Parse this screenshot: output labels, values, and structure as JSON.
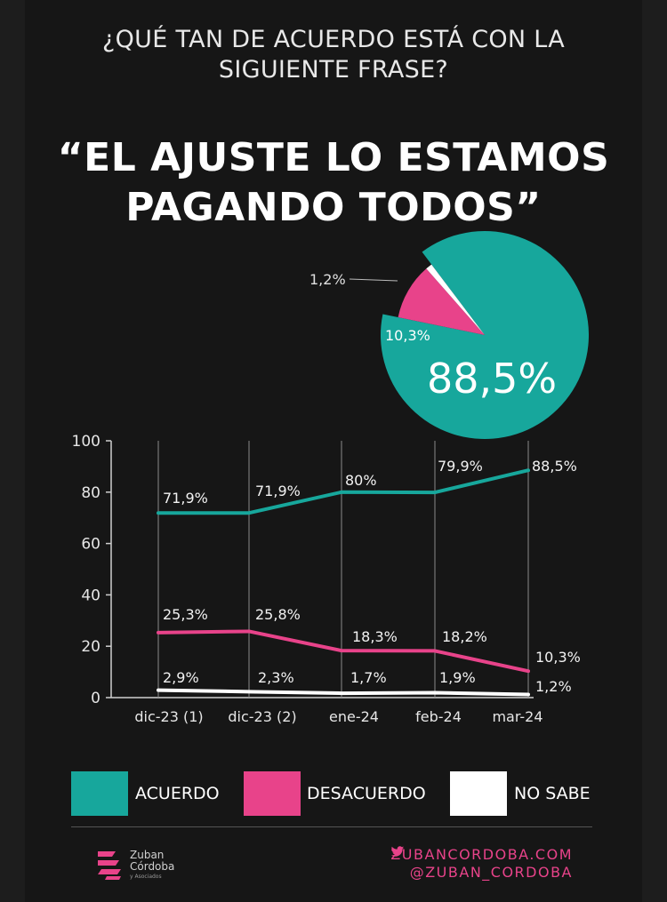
{
  "header": {
    "question_line1": "¿QUÉ TAN DE ACUERDO ESTÁ CON LA",
    "question_line2": "SIGUIENTE FRASE?",
    "quote_line1": "“EL AJUSTE LO ESTAMOS",
    "quote_line2": "PAGANDO TODOS”"
  },
  "colors": {
    "acuerdo": "#17a79c",
    "desacuerdo": "#e8438a",
    "no_sabe": "#ffffff",
    "background": "#161616"
  },
  "chart_data": [
    {
      "type": "pie",
      "labels": [
        "ACUERDO",
        "DESACUERDO",
        "NO SABE"
      ],
      "values": [
        88.5,
        10.3,
        1.2
      ],
      "value_labels": [
        "88,5%",
        "10,3%",
        "1,2%"
      ]
    },
    {
      "type": "line",
      "categories": [
        "dic-23 (1)",
        "dic-23 (2)",
        "ene-24",
        "feb-24",
        "mar-24"
      ],
      "ylim": [
        0,
        100
      ],
      "yticks": [
        0,
        20,
        40,
        60,
        80,
        100
      ],
      "grid": "vertical",
      "legend": "bottom",
      "series": [
        {
          "name": "ACUERDO",
          "values": [
            71.9,
            71.9,
            80,
            79.9,
            88.5
          ],
          "labels": [
            "71,9%",
            "71,9%",
            "80%",
            "79,9%",
            "88,5%"
          ]
        },
        {
          "name": "DESACUERDO",
          "values": [
            25.3,
            25.8,
            18.3,
            18.2,
            10.3
          ],
          "labels": [
            "25,3%",
            "25,8%",
            "18,3%",
            "18,2%",
            "10,3%"
          ]
        },
        {
          "name": "NO SABE",
          "values": [
            2.9,
            2.3,
            1.7,
            1.9,
            1.2
          ],
          "labels": [
            "2,9%",
            "2,3%",
            "1,7%",
            "1,9%",
            "1,2%"
          ]
        }
      ]
    }
  ],
  "legend": {
    "acuerdo": "ACUERDO",
    "desacuerdo": "DESACUERDO",
    "no_sabe": "NO SABE"
  },
  "footer": {
    "brand_name_line1": "Zuban",
    "brand_name_line2": "Córdoba",
    "brand_sub": "y Asociados",
    "website": "ZUBANCORDOBA.COM",
    "twitter": "@ZUBAN_CORDOBA",
    "twitter_icon": "twitter-bird-icon",
    "brand_icon": "zuban-cordoba-logo-icon"
  }
}
